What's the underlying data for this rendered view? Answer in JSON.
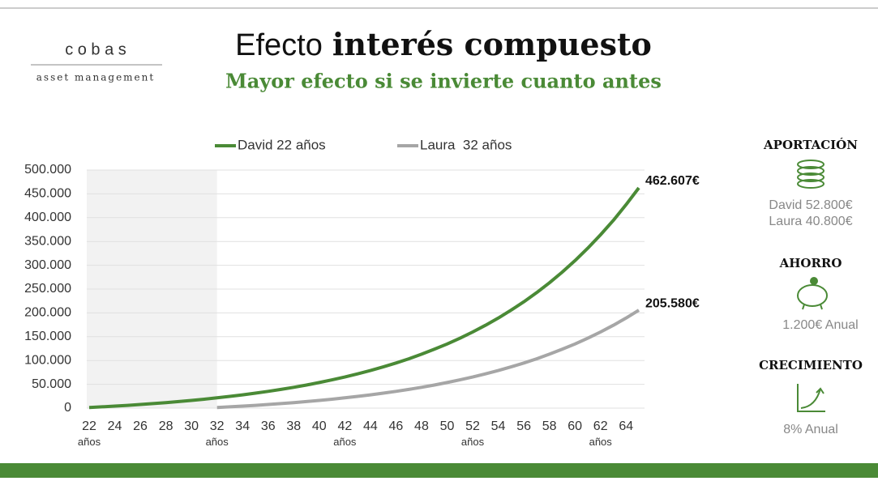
{
  "logo": {
    "name": "c o b a s",
    "tagline": "asset management"
  },
  "header": {
    "title_light": "Efecto",
    "title_bold": "interés compuesto",
    "subtitle": "Mayor efecto si se invierte cuanto antes"
  },
  "side_panel": {
    "contribution": {
      "heading": "APORTACIÓN",
      "lines": [
        "David 52.800€",
        "Laura 40.800€"
      ]
    },
    "saving": {
      "heading": "AHORRO",
      "lines": [
        "1.200€ Anual"
      ]
    },
    "growth": {
      "heading": "CRECIMIENTO",
      "lines": [
        "8% Anual"
      ]
    }
  },
  "chart_data": {
    "type": "line",
    "x": [
      22,
      23,
      24,
      25,
      26,
      27,
      28,
      29,
      30,
      31,
      32,
      33,
      34,
      35,
      36,
      37,
      38,
      39,
      40,
      41,
      42,
      43,
      44,
      45,
      46,
      47,
      48,
      49,
      50,
      51,
      52,
      53,
      54,
      55,
      56,
      57,
      58,
      59,
      60,
      61,
      62,
      63,
      64,
      65
    ],
    "series": [
      {
        "name": "David 22 años",
        "color": "#4a8a36",
        "end_label": "462.607€",
        "values": [
          1296,
          2696,
          4208,
          5840,
          7603,
          9507,
          11564,
          13785,
          16184,
          18775,
          21573,
          24594,
          27858,
          31383,
          35189,
          39300,
          43740,
          48536,
          53714,
          59308,
          65348,
          71872,
          78918,
          86527,
          94745,
          103621,
          113207,
          123559,
          134740,
          146815,
          159856,
          173941,
          189152,
          205580,
          223323,
          242484,
          263179,
          285529,
          309668,
          335737,
          363892,
          394300,
          427140,
          462607
        ]
      },
      {
        "name": "Laura  32 años",
        "color": "#a6a6a6",
        "end_label": "205.580€",
        "values": [
          null,
          null,
          null,
          null,
          null,
          null,
          null,
          null,
          null,
          null,
          1296,
          2696,
          4208,
          5840,
          7603,
          9507,
          11564,
          13785,
          16184,
          18775,
          21573,
          24594,
          27858,
          31383,
          35189,
          39300,
          43740,
          48536,
          53714,
          59308,
          65348,
          71872,
          78918,
          86527,
          94745,
          103621,
          113207,
          123559,
          134740,
          146815,
          159856,
          173941,
          189152,
          205580
        ]
      }
    ],
    "xlim": [
      22,
      65
    ],
    "xticks": [
      {
        "value": 22,
        "label": "22 años"
      },
      24,
      26,
      28,
      30,
      {
        "value": 32,
        "label": "32 años"
      },
      34,
      36,
      38,
      40,
      {
        "value": 42,
        "label": "42 años"
      },
      44,
      46,
      48,
      50,
      {
        "value": 52,
        "label": "52 años"
      },
      54,
      56,
      58,
      60,
      {
        "value": 62,
        "label": "62 años"
      },
      64
    ],
    "ylim": [
      0,
      500000
    ],
    "yticks": [
      0,
      {
        "value": 50000,
        "label": "50.000"
      },
      {
        "value": 100000,
        "label": "100.000"
      },
      {
        "value": 150000,
        "label": "150.000"
      },
      {
        "value": 200000,
        "label": "200.000"
      },
      {
        "value": 250000,
        "label": "250.000"
      },
      {
        "value": 300000,
        "label": "300.000"
      },
      {
        "value": 350000,
        "label": "350.000"
      },
      {
        "value": 400000,
        "label": "400.000"
      },
      {
        "value": 450000,
        "label": "450.000"
      },
      {
        "value": 500000,
        "label": "500.000"
      }
    ],
    "shaded_range": [
      22,
      32
    ],
    "grid": true,
    "legend": "top"
  }
}
